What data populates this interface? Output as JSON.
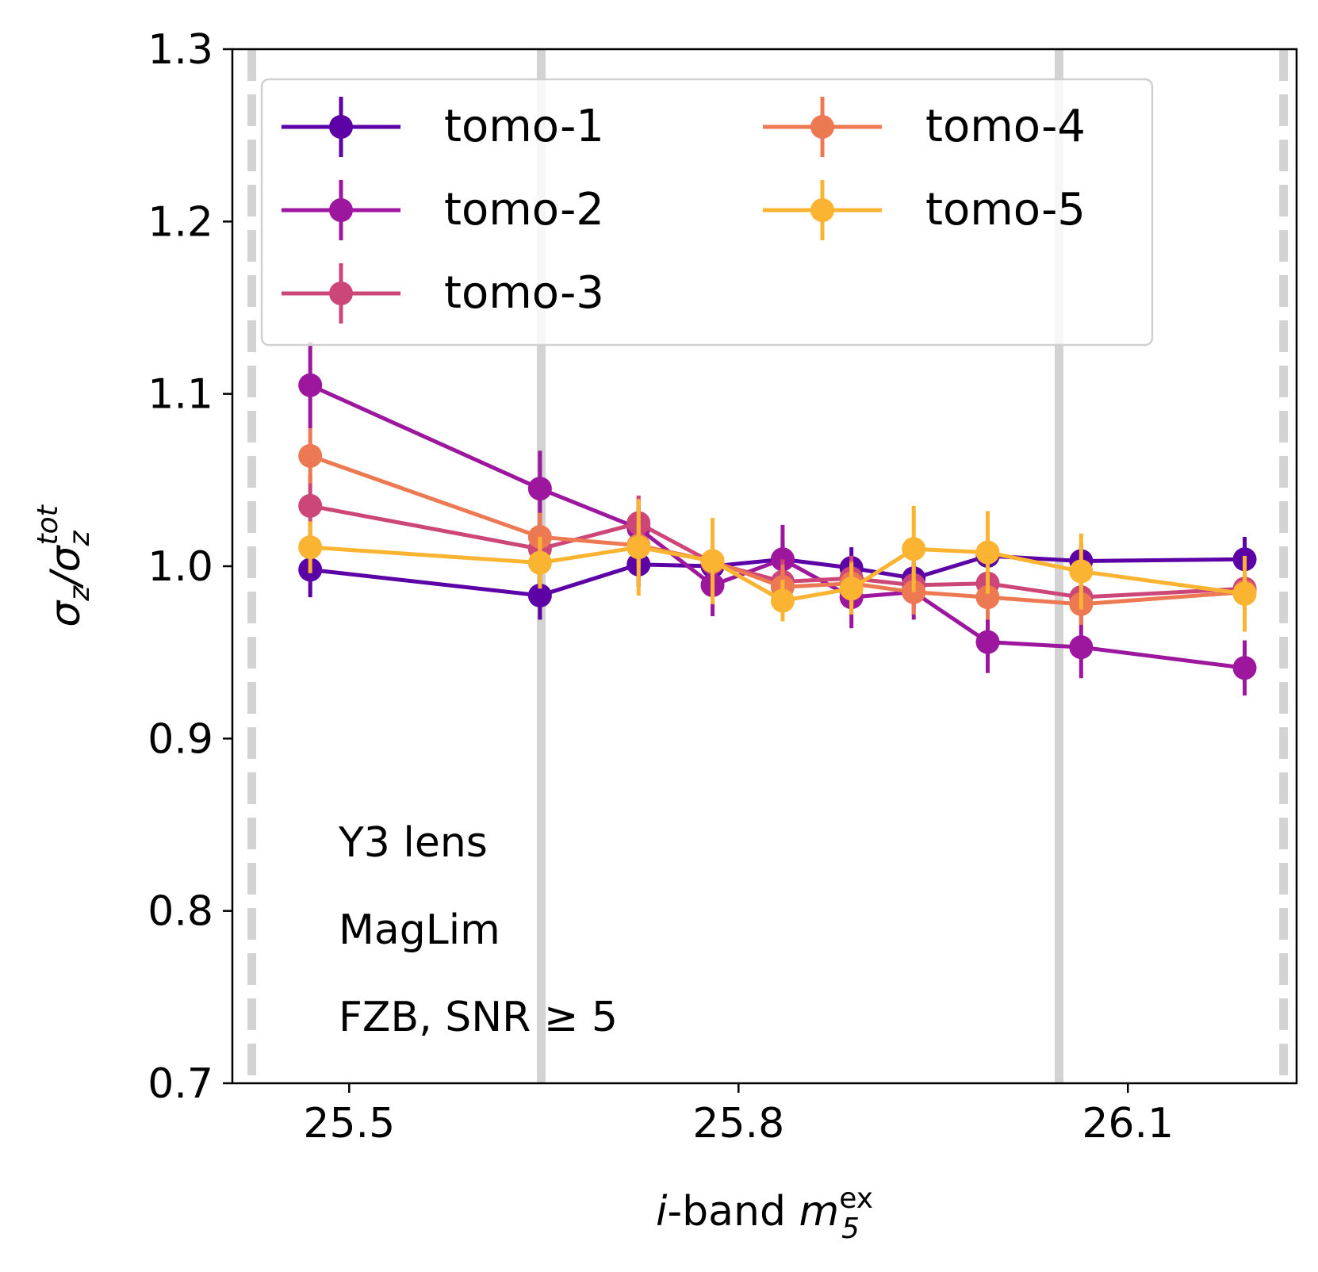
{
  "chart_data": {
    "type": "line",
    "title": "",
    "xlabel": {
      "prefix": "i",
      "mid": "-band ",
      "m": "m",
      "sup": "ex",
      "sub": "5"
    },
    "ylabel": {
      "sigma": "σ",
      "z": "z",
      "slash": "/",
      "sup": "tot"
    },
    "xlim": [
      25.41,
      26.23
    ],
    "ylim": [
      0.7,
      1.3
    ],
    "xticks": [
      25.5,
      25.8,
      26.1
    ],
    "xtick_labels": [
      "25.5",
      "25.8",
      "26.1"
    ],
    "yticks": [
      0.7,
      0.8,
      0.9,
      1.0,
      1.1,
      1.2,
      1.3
    ],
    "ytick_labels": [
      "0.7",
      "0.8",
      "0.9",
      "1.0",
      "1.1",
      "1.2",
      "1.3"
    ],
    "grid": false,
    "legend_position": "top-left, two columns",
    "vertical_lines": [
      {
        "x": 25.425,
        "style": "dashed"
      },
      {
        "x": 25.648,
        "style": "solid"
      },
      {
        "x": 26.047,
        "style": "solid"
      },
      {
        "x": 26.22,
        "style": "dashed"
      }
    ],
    "annotations": [
      "Y3 lens",
      "MagLim",
      "FZB, SNR ≥ 5"
    ],
    "series": [
      {
        "name": "tomo-1",
        "color": "#5c01a6",
        "x": [
          25.47,
          25.647,
          25.723,
          25.78,
          25.834,
          25.887,
          25.935,
          25.992,
          26.064,
          26.19
        ],
        "y": [
          0.998,
          0.983,
          1.001,
          1.0,
          1.004,
          0.999,
          0.993,
          1.006,
          1.003,
          1.004
        ],
        "yerr": [
          0.016,
          0.014,
          0.013,
          0.01,
          0.01,
          0.012,
          0.01,
          0.012,
          0.01,
          0.013
        ]
      },
      {
        "name": "tomo-2",
        "color": "#9c179e",
        "x": [
          25.47,
          25.647,
          25.723,
          25.78,
          25.834,
          25.887,
          25.935,
          25.992,
          26.064,
          26.19
        ],
        "y": [
          1.105,
          1.045,
          1.022,
          0.989,
          1.004,
          0.982,
          0.985,
          0.956,
          0.953,
          0.941
        ],
        "yerr": [
          0.025,
          0.022,
          0.018,
          0.018,
          0.02,
          0.018,
          0.016,
          0.018,
          0.018,
          0.016
        ]
      },
      {
        "name": "tomo-3",
        "color": "#cc4778",
        "x": [
          25.47,
          25.647,
          25.723,
          25.78,
          25.834,
          25.887,
          25.935,
          25.992,
          26.064,
          26.19
        ],
        "y": [
          1.035,
          1.01,
          1.025,
          1.002,
          0.991,
          0.993,
          0.989,
          0.99,
          0.982,
          0.987
        ],
        "yerr": [
          0.018,
          0.015,
          0.016,
          0.012,
          0.013,
          0.013,
          0.012,
          0.013,
          0.013,
          0.013
        ]
      },
      {
        "name": "tomo-4",
        "color": "#ed7953",
        "x": [
          25.47,
          25.647,
          25.723,
          25.78,
          25.834,
          25.887,
          25.935,
          25.992,
          26.064,
          26.19
        ],
        "y": [
          1.064,
          1.017,
          1.012,
          1.003,
          0.988,
          0.99,
          0.985,
          0.982,
          0.978,
          0.985
        ],
        "yerr": [
          0.016,
          0.014,
          0.013,
          0.013,
          0.013,
          0.013,
          0.013,
          0.013,
          0.012,
          0.014
        ]
      },
      {
        "name": "tomo-5",
        "color": "#fbb431",
        "x": [
          25.47,
          25.647,
          25.723,
          25.78,
          25.834,
          25.887,
          25.935,
          25.992,
          26.064,
          26.19
        ],
        "y": [
          1.011,
          1.002,
          1.011,
          1.003,
          0.98,
          0.987,
          1.01,
          1.008,
          0.997,
          0.984
        ],
        "yerr": [
          0.015,
          0.015,
          0.028,
          0.025,
          0.012,
          0.015,
          0.025,
          0.024,
          0.022,
          0.022
        ]
      }
    ]
  }
}
